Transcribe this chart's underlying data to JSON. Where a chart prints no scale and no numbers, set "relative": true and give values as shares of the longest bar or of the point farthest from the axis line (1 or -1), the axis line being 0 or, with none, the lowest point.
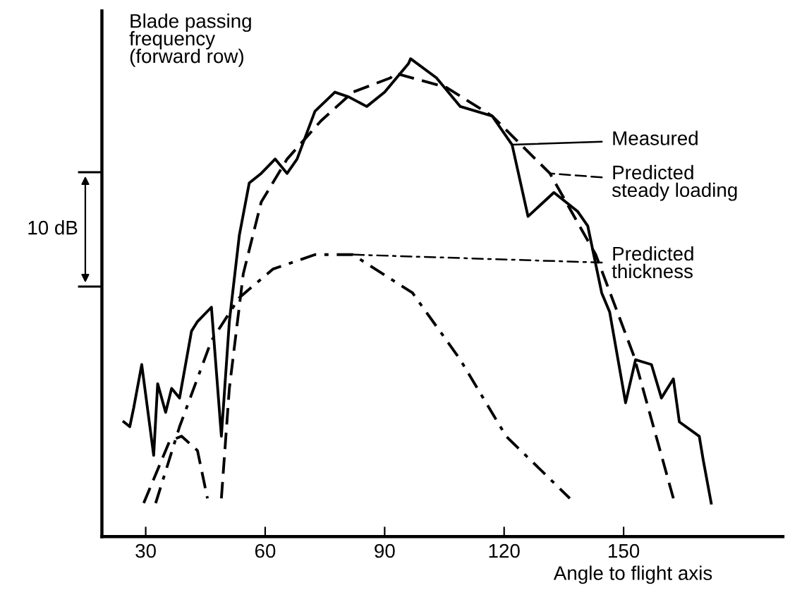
{
  "chart_data": {
    "type": "line",
    "relative": true,
    "title": "Blade passing\nfrequency\n(forward row)",
    "xlabel": "Angle to flight axis",
    "xlim": [
      19,
      190
    ],
    "xticks": [
      30,
      60,
      90,
      120,
      150
    ],
    "grid": false,
    "legend": "right",
    "marker": "none",
    "annotations": [
      "10 dB"
    ],
    "series": [
      {
        "name": "Measured",
        "color": "#000000",
        "line_style": "solid",
        "x": [
          24.5,
          26,
          27,
          29,
          32,
          33,
          35,
          36.5,
          38.5,
          41.5,
          43,
          46.5,
          49,
          51,
          53.5,
          56,
          59,
          62.5,
          65.5,
          68,
          72.5,
          77.5,
          81,
          85.5,
          90,
          96,
          96.5,
          103,
          109,
          117,
          122,
          126,
          132.5,
          138.5,
          141,
          144.5,
          146.5,
          150.5,
          153,
          157,
          159.5,
          162.5,
          164,
          169,
          170,
          172
        ],
        "values": [
          0.24,
          0.23,
          0.27,
          0.36,
          0.17,
          0.32,
          0.26,
          0.31,
          0.29,
          0.43,
          0.45,
          0.48,
          0.21,
          0.45,
          0.63,
          0.74,
          0.76,
          0.79,
          0.76,
          0.79,
          0.89,
          0.93,
          0.92,
          0.9,
          0.93,
          0.99,
          1.0,
          0.96,
          0.9,
          0.88,
          0.82,
          0.67,
          0.72,
          0.68,
          0.65,
          0.51,
          0.47,
          0.28,
          0.37,
          0.36,
          0.29,
          0.33,
          0.24,
          0.21,
          0.16,
          0.07
        ]
      },
      {
        "name": "Predicted\nsteady loading",
        "color": "#000000",
        "line_style": "dashed",
        "x": [
          29.5,
          36,
          39,
          43,
          45.5,
          46.5,
          49,
          51,
          54.5,
          59,
          65.5,
          74,
          82,
          91.5,
          92.5,
          105.5,
          117,
          131.5,
          143,
          152.5,
          162.5
        ],
        "values": [
          0.07,
          0.2,
          0.21,
          0.18,
          0.08,
          null,
          0.08,
          0.31,
          0.55,
          0.7,
          0.79,
          0.87,
          0.93,
          0.96,
          0.97,
          0.94,
          0.88,
          0.76,
          0.59,
          0.38,
          0.08
        ]
      },
      {
        "name": "Predicted\nthickness",
        "color": "#000000",
        "line_style": "dashdot",
        "x": [
          32.5,
          38.5,
          46.5,
          53.5,
          62,
          72.5,
          82,
          97,
          109,
          120.5,
          136.5
        ],
        "values": [
          0.07,
          0.23,
          0.41,
          0.5,
          0.56,
          0.59,
          0.59,
          0.51,
          0.37,
          0.21,
          0.08
        ]
      }
    ]
  }
}
